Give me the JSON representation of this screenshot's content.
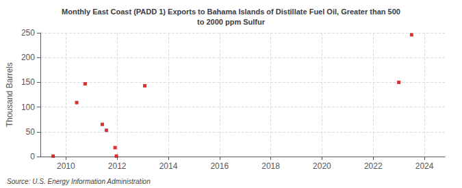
{
  "chart_data": {
    "type": "scatter",
    "title": "Monthly East Coast (PADD 1) Exports to Bahama Islands of Distillate Fuel Oil, Greater than 500\nto 2000 ppm Sulfur",
    "ylabel": "Thousand Barrels",
    "source": "Source: U.S. Energy Information Administration",
    "x": [
      2009.5,
      2010.42,
      2010.75,
      2011.42,
      2011.58,
      2011.92,
      2011.97,
      2013.08,
      2023.0,
      2023.5
    ],
    "values": [
      1,
      109,
      147,
      65,
      53,
      18,
      1,
      143,
      150,
      246
    ],
    "color": "#cc0000",
    "marker": "square",
    "xlim": [
      2009.0,
      2024.8
    ],
    "xticks": [
      2010,
      2012,
      2014,
      2016,
      2018,
      2020,
      2022,
      2024
    ],
    "ylim": [
      0,
      250
    ],
    "yticks": [
      0,
      50,
      100,
      150,
      200,
      250
    ],
    "grid": true
  }
}
